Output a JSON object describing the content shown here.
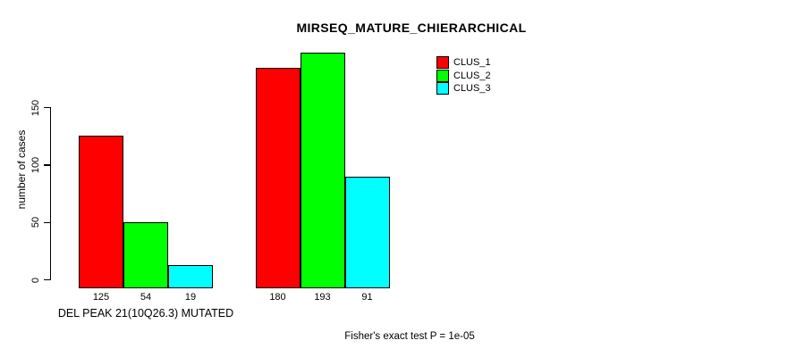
{
  "title": "MIRSEQ_MATURE_CHIERARCHICAL",
  "caption": "Fisher's exact test P = 1e-05",
  "y_axis": {
    "label": "number of cases"
  },
  "legend": {
    "items": [
      {
        "label": "CLUS_1",
        "color": "#FF0000"
      },
      {
        "label": "CLUS_2",
        "color": "#00FF00"
      },
      {
        "label": "CLUS_3",
        "color": "#00FFFF"
      }
    ]
  },
  "chart_data": {
    "type": "bar",
    "title": "MIRSEQ_MATURE_CHIERARCHICAL",
    "ylabel": "number of cases",
    "xlabel": "",
    "categories": [
      "DEL PEAK 21(10Q26.3) MUTATED",
      ""
    ],
    "series": [
      {
        "name": "CLUS_1",
        "color": "#FF0000",
        "values": [
          125,
          180
        ]
      },
      {
        "name": "CLUS_2",
        "color": "#00FF00",
        "values": [
          54,
          193
        ]
      },
      {
        "name": "CLUS_3",
        "color": "#00FFFF",
        "values": [
          19,
          91
        ]
      }
    ],
    "bar_value_labels": [
      [
        "125",
        "54",
        "19"
      ],
      [
        "180",
        "193",
        "91"
      ]
    ],
    "yticks": [
      0,
      50,
      100,
      150
    ],
    "ylim": [
      0,
      200
    ],
    "grid": false,
    "legend_position": "top-right",
    "annotation": "Fisher's exact test P = 1e-05"
  }
}
